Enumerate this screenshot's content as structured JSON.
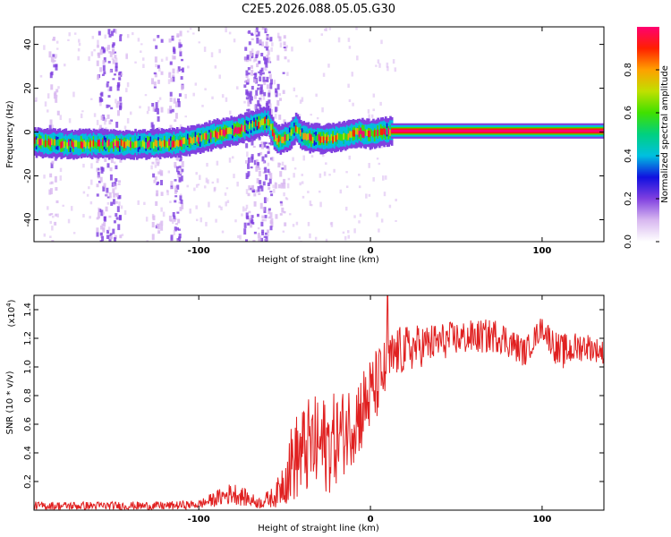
{
  "title": "C2E5.2026.088.05.05.G30",
  "chart_data": [
    {
      "type": "heatmap",
      "title": "C2E5.2026.088.05.05.G30",
      "xlabel": "Height of straight line (km)",
      "ylabel": "Frequency (Hz)",
      "xlim": [
        -196,
        136
      ],
      "ylim": [
        -50,
        48
      ],
      "xticks": [
        -100,
        0,
        100
      ],
      "yticks": [
        -40,
        -20,
        0,
        20,
        40
      ],
      "colorbar": {
        "label": "Normalized spectral amplitude",
        "ticks": [
          "0.0",
          "0.2",
          "0.4",
          "0.6",
          "0.8"
        ],
        "range": [
          0,
          1
        ],
        "colors": [
          "#ffffff",
          "#d8b8f0",
          "#8040e0",
          "#1010e0",
          "#00c0e0",
          "#00d080",
          "#40e000",
          "#c0e000",
          "#ffa000",
          "#ff2000",
          "#ff0070"
        ]
      },
      "trace": {
        "points": [
          {
            "x": -196,
            "y": -4.5
          },
          {
            "x": -180,
            "y": -5.5
          },
          {
            "x": -160,
            "y": -5.5
          },
          {
            "x": -130,
            "y": -5.5
          },
          {
            "x": -115,
            "y": -5
          },
          {
            "x": -105,
            "y": -4
          },
          {
            "x": -95,
            "y": -2
          },
          {
            "x": -85,
            "y": 0
          },
          {
            "x": -75,
            "y": 1.5
          },
          {
            "x": -65,
            "y": 4
          },
          {
            "x": -60,
            "y": 5
          },
          {
            "x": -55,
            "y": -4
          },
          {
            "x": -48,
            "y": -2
          },
          {
            "x": -44,
            "y": 2
          },
          {
            "x": -40,
            "y": -2
          },
          {
            "x": -35,
            "y": -3
          },
          {
            "x": -25,
            "y": -3
          },
          {
            "x": -15,
            "y": -2
          },
          {
            "x": -8,
            "y": 0
          },
          {
            "x": 0,
            "y": -1
          },
          {
            "x": 5,
            "y": 0
          },
          {
            "x": 12,
            "y": 0.5
          },
          {
            "x": 136,
            "y": 0.5
          }
        ]
      },
      "noise_bands": [
        {
          "x_from": -188,
          "x_to": -182,
          "strength": 0.5
        },
        {
          "x_from": -160,
          "x_to": -146,
          "strength": 0.8
        },
        {
          "x_from": -128,
          "x_to": -122,
          "strength": 0.6
        },
        {
          "x_from": -118,
          "x_to": -110,
          "strength": 0.8
        },
        {
          "x_from": -74,
          "x_to": -58,
          "strength": 1.0
        },
        {
          "x_from": -56,
          "x_to": -50,
          "strength": 0.4
        }
      ]
    },
    {
      "type": "line",
      "xlabel": "Height of straight line (km)",
      "ylabel": "SNR (10 * v/v)",
      "y_multiplier_label": "(x10",
      "y_multiplier_exp": "4",
      "xlim": [
        -196,
        136
      ],
      "ylim": [
        0,
        1.5
      ],
      "xticks": [
        -100,
        0,
        100
      ],
      "yticks": [
        0.2,
        0.4,
        0.6,
        0.8,
        1.0,
        1.2,
        1.4
      ],
      "series": [
        {
          "name": "SNR",
          "color": "#e02020",
          "envelope": [
            {
              "x": -196,
              "mean": 0.03,
              "amp": 0.03
            },
            {
              "x": -120,
              "mean": 0.03,
              "amp": 0.03
            },
            {
              "x": -100,
              "mean": 0.04,
              "amp": 0.03
            },
            {
              "x": -80,
              "mean": 0.12,
              "amp": 0.08
            },
            {
              "x": -65,
              "mean": 0.05,
              "amp": 0.04
            },
            {
              "x": -55,
              "mean": 0.1,
              "amp": 0.08
            },
            {
              "x": -45,
              "mean": 0.35,
              "amp": 0.3
            },
            {
              "x": -35,
              "mean": 0.45,
              "amp": 0.35
            },
            {
              "x": -25,
              "mean": 0.45,
              "amp": 0.35
            },
            {
              "x": -15,
              "mean": 0.55,
              "amp": 0.3
            },
            {
              "x": -5,
              "mean": 0.7,
              "amp": 0.3
            },
            {
              "x": 5,
              "mean": 0.9,
              "amp": 0.25
            },
            {
              "x": 15,
              "mean": 1.1,
              "amp": 0.18
            },
            {
              "x": 30,
              "mean": 1.15,
              "amp": 0.15
            },
            {
              "x": 50,
              "mean": 1.2,
              "amp": 0.12
            },
            {
              "x": 75,
              "mean": 1.22,
              "amp": 0.12
            },
            {
              "x": 90,
              "mean": 1.1,
              "amp": 0.1
            },
            {
              "x": 100,
              "mean": 1.28,
              "amp": 0.08
            },
            {
              "x": 110,
              "mean": 1.1,
              "amp": 0.13
            },
            {
              "x": 125,
              "mean": 1.15,
              "amp": 0.1
            },
            {
              "x": 136,
              "mean": 1.1,
              "amp": 0.08
            }
          ],
          "peak": {
            "x": 10,
            "y": 1.5
          }
        }
      ]
    }
  ]
}
